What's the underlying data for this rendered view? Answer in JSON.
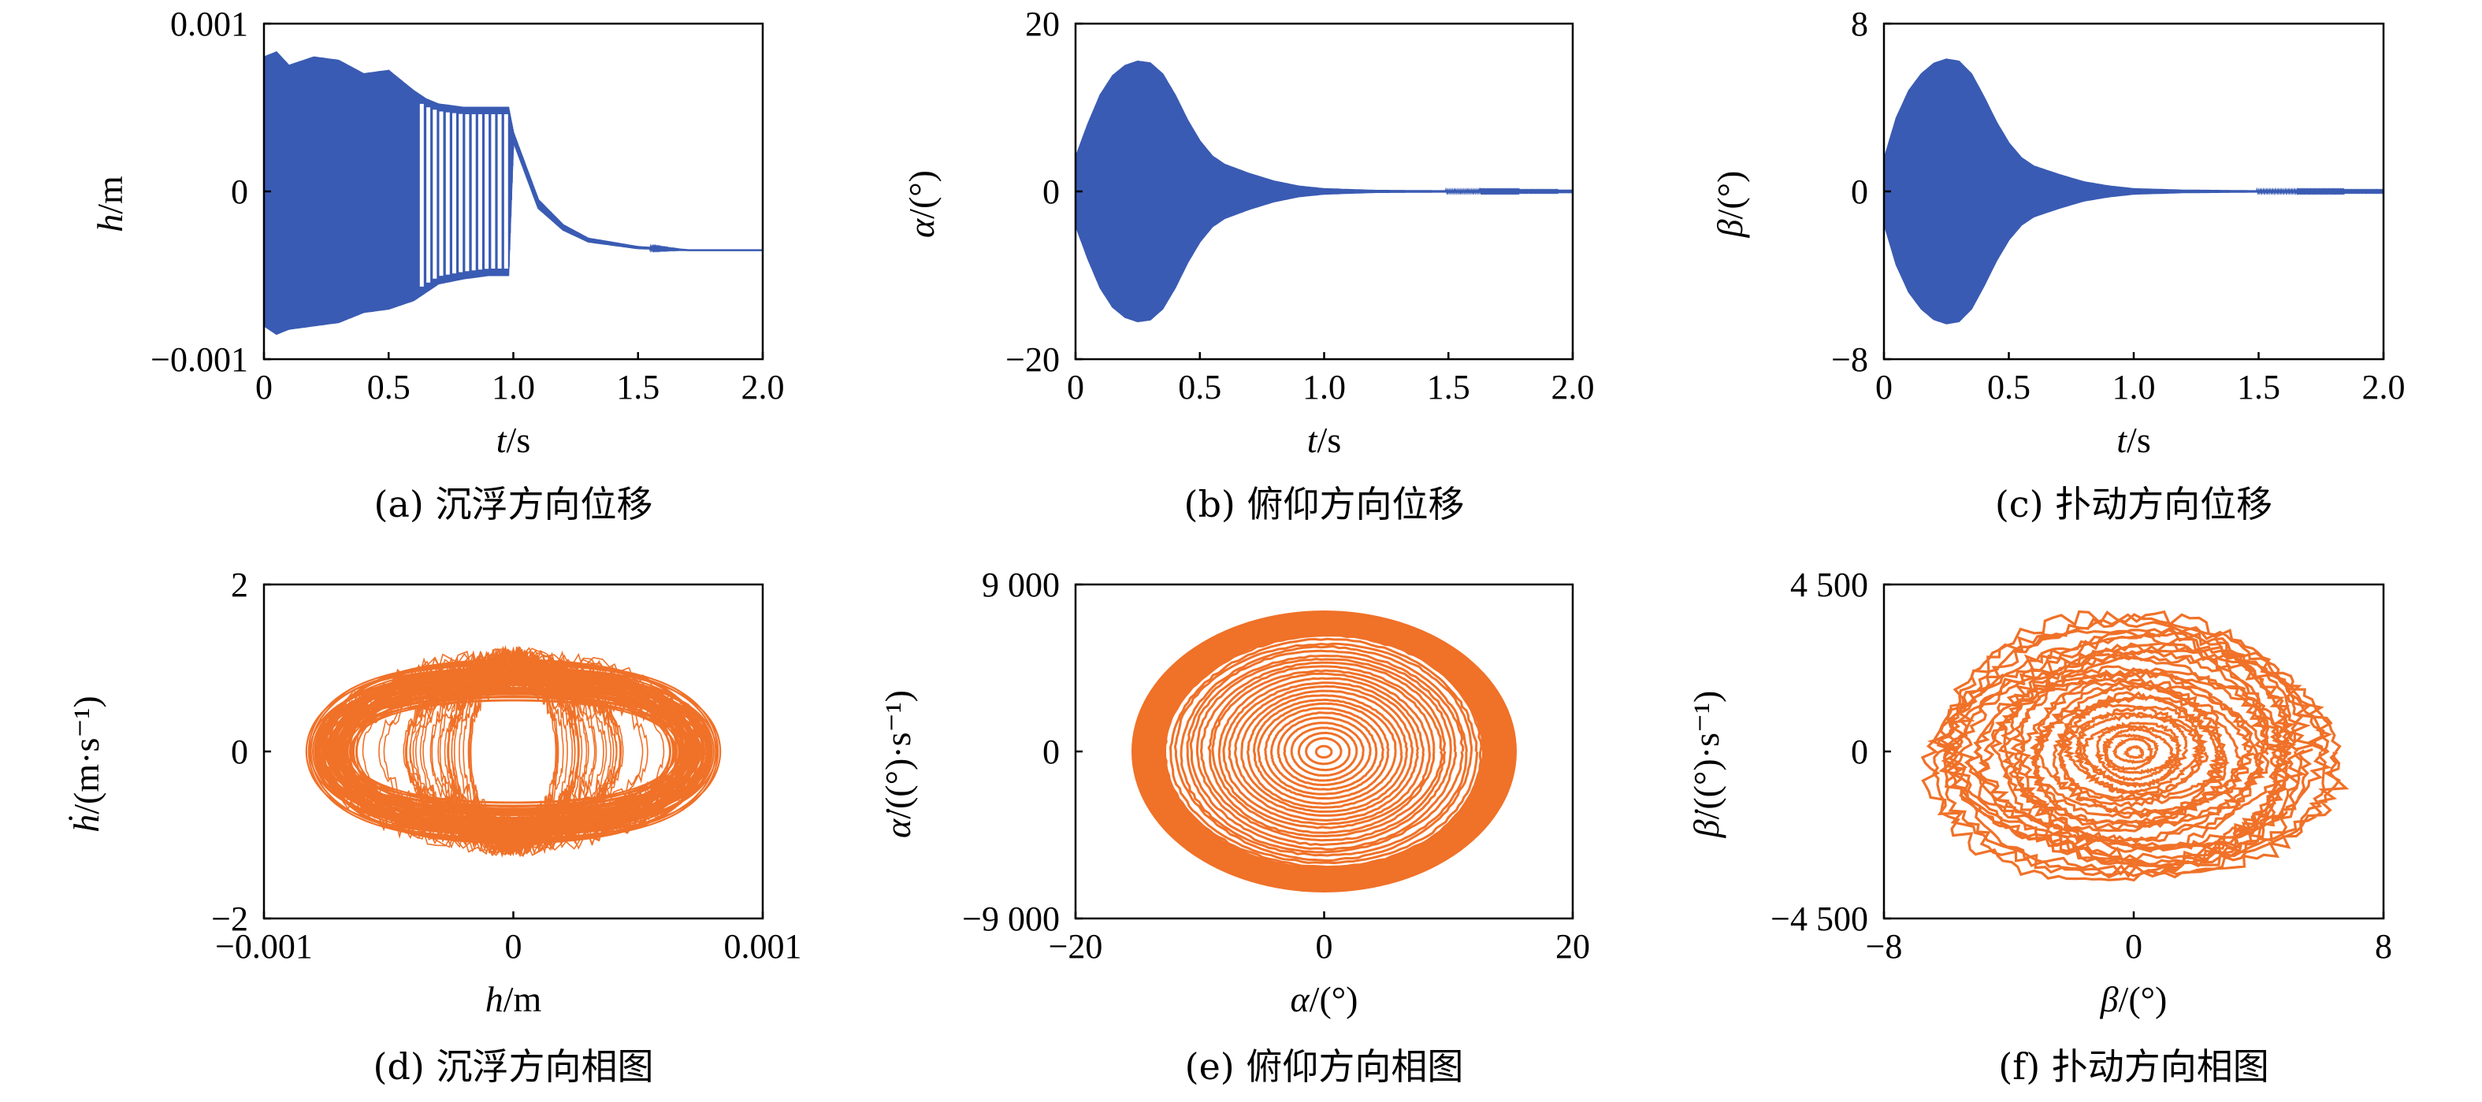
{
  "figure": {
    "series_colors": {
      "time_history": "#3a5bb3",
      "phase": "#f07128"
    }
  },
  "chart_data": [
    {
      "id": "a",
      "type": "line",
      "caption": "(a) 沉浮方向位移",
      "xlabel": "t/s",
      "ylabel": "h/m",
      "xlim": [
        0,
        2.0
      ],
      "ylim": [
        -0.001,
        0.001
      ],
      "xticks": [
        "0",
        "0.5",
        "1.0",
        "1.5",
        "2.0"
      ],
      "xtick_values": [
        0,
        0.5,
        1.0,
        1.5,
        2.0
      ],
      "yticks": [
        "−0.001",
        "0",
        "0.001"
      ],
      "ytick_values": [
        -0.001,
        0,
        0.001
      ],
      "grid": false,
      "series": [
        {
          "kind": "time_history",
          "color": "#3a5bb3",
          "envelope": {
            "t": [
              0.0,
              0.05,
              0.1,
              0.2,
              0.3,
              0.4,
              0.5,
              0.6,
              0.65,
              0.7,
              0.8,
              0.9,
              0.95,
              0.98,
              1.0,
              1.05,
              1.1,
              1.2,
              1.3,
              1.5,
              1.7,
              2.0
            ],
            "upper": [
              0.0008,
              0.00083,
              0.00075,
              0.0008,
              0.00078,
              0.0007,
              0.00072,
              0.0006,
              0.00055,
              0.00052,
              0.0005,
              0.0005,
              0.0005,
              0.0005,
              0.00035,
              0.00015,
              -5e-05,
              -0.0002,
              -0.00028,
              -0.00033,
              -0.00035,
              -0.00035
            ],
            "lower": [
              -0.0008,
              -0.00085,
              -0.00082,
              -0.0008,
              -0.00078,
              -0.00072,
              -0.0007,
              -0.00065,
              -0.0006,
              -0.00055,
              -0.00052,
              -0.0005,
              -0.0005,
              -0.0005,
              0.0003,
              0.0001,
              -0.0001,
              -0.00023,
              -0.0003,
              -0.00034,
              -0.00035,
              -0.00035
            ]
          },
          "final_value": -0.00035
        }
      ]
    },
    {
      "id": "b",
      "type": "line",
      "caption": "(b) 俯仰方向位移",
      "xlabel": "t/s",
      "ylabel": "α/(°)",
      "xlim": [
        0,
        2.0
      ],
      "ylim": [
        -20,
        20
      ],
      "xticks": [
        "0",
        "0.5",
        "1.0",
        "1.5",
        "2.0"
      ],
      "xtick_values": [
        0,
        0.5,
        1.0,
        1.5,
        2.0
      ],
      "yticks": [
        "−20",
        "0",
        "20"
      ],
      "ytick_values": [
        -20,
        0,
        20
      ],
      "grid": false,
      "series": [
        {
          "kind": "time_history",
          "color": "#3a5bb3",
          "envelope": {
            "t": [
              0.0,
              0.05,
              0.1,
              0.15,
              0.2,
              0.25,
              0.3,
              0.35,
              0.4,
              0.45,
              0.5,
              0.55,
              0.6,
              0.7,
              0.8,
              0.9,
              1.0,
              1.2,
              1.5,
              2.0
            ],
            "upper": [
              4,
              8,
              11.5,
              13.8,
              15,
              15.5,
              15.3,
              14,
              11.5,
              8.5,
              6,
              4.2,
              3.2,
              2.1,
              1.2,
              0.6,
              0.3,
              0.1,
              0.05,
              0.02
            ],
            "lower": [
              -4,
              -8,
              -11.5,
              -13.8,
              -15,
              -15.5,
              -15.3,
              -14,
              -11.5,
              -8.5,
              -6,
              -4.2,
              -3.2,
              -2.1,
              -1.2,
              -0.6,
              -0.3,
              -0.1,
              -0.05,
              -0.02
            ]
          },
          "final_value": 0
        }
      ]
    },
    {
      "id": "c",
      "type": "line",
      "caption": "(c) 扑动方向位移",
      "xlabel": "t/s",
      "ylabel": "β/(°)",
      "xlim": [
        0,
        2.0
      ],
      "ylim": [
        -8,
        8
      ],
      "xticks": [
        "0",
        "0.5",
        "1.0",
        "1.5",
        "2.0"
      ],
      "xtick_values": [
        0,
        0.5,
        1.0,
        1.5,
        2.0
      ],
      "yticks": [
        "−8",
        "0",
        "8"
      ],
      "ytick_values": [
        -8,
        0,
        8
      ],
      "grid": false,
      "series": [
        {
          "kind": "time_history",
          "color": "#3a5bb3",
          "envelope": {
            "t": [
              0.0,
              0.05,
              0.1,
              0.15,
              0.2,
              0.25,
              0.3,
              0.35,
              0.4,
              0.45,
              0.5,
              0.55,
              0.6,
              0.7,
              0.8,
              0.9,
              1.0,
              1.2,
              1.5,
              2.0
            ],
            "upper": [
              1.5,
              3.5,
              4.8,
              5.6,
              6.1,
              6.3,
              6.2,
              5.6,
              4.5,
              3.3,
              2.3,
              1.6,
              1.2,
              0.8,
              0.45,
              0.25,
              0.12,
              0.05,
              0.02,
              0.01
            ],
            "lower": [
              -1.5,
              -3.5,
              -4.8,
              -5.6,
              -6.1,
              -6.3,
              -6.2,
              -5.6,
              -4.5,
              -3.3,
              -2.3,
              -1.6,
              -1.2,
              -0.8,
              -0.45,
              -0.25,
              -0.12,
              -0.05,
              -0.02,
              -0.01
            ]
          },
          "final_value": 0
        }
      ]
    },
    {
      "id": "d",
      "type": "line",
      "caption": "(d) 沉浮方向相图",
      "xlabel": "h/m",
      "ylabel": "ḣ/(m·s⁻¹)",
      "xlim": [
        -0.001,
        0.001
      ],
      "ylim": [
        -2,
        2
      ],
      "xticks": [
        "−0.001",
        "0",
        "0.001"
      ],
      "xtick_values": [
        -0.001,
        0,
        0.001
      ],
      "yticks": [
        "−2",
        "0",
        "2"
      ],
      "ytick_values": [
        -2,
        0,
        2
      ],
      "grid": false,
      "series": [
        {
          "kind": "phase_portrait",
          "color": "#f07128",
          "shape": "bowtie",
          "x_amplitude": 0.00085,
          "y_amplitude": 1.4,
          "waist_y": 1.1
        }
      ]
    },
    {
      "id": "e",
      "type": "line",
      "caption": "(e) 俯仰方向相图",
      "xlabel": "α/(°)",
      "ylabel": "α̇/((°)·s⁻¹)",
      "xlim": [
        -20,
        20
      ],
      "ylim": [
        -9000,
        9000
      ],
      "xticks": [
        "−20",
        "0",
        "20"
      ],
      "xtick_values": [
        -20,
        0,
        20
      ],
      "yticks": [
        "−9 000",
        "0",
        "9 000"
      ],
      "ytick_values": [
        -9000,
        0,
        9000
      ],
      "grid": false,
      "series": [
        {
          "kind": "phase_portrait",
          "color": "#f07128",
          "shape": "spiral",
          "x_amplitude": 15.5,
          "y_amplitude": 7600,
          "solid_fraction": 0.82
        }
      ]
    },
    {
      "id": "f",
      "type": "line",
      "caption": "(f) 扑动方向相图",
      "xlabel": "β/(°)",
      "ylabel": "β̇/((°)·s⁻¹)",
      "xlim": [
        -8,
        8
      ],
      "ylim": [
        -4500,
        4500
      ],
      "xticks": [
        "−8",
        "0",
        "8"
      ],
      "xtick_values": [
        -8,
        0,
        8
      ],
      "yticks": [
        "−4 500",
        "0",
        "4 500"
      ],
      "ytick_values": [
        -4500,
        0,
        4500
      ],
      "grid": false,
      "series": [
        {
          "kind": "phase_portrait",
          "color": "#f07128",
          "shape": "irregular_spiral",
          "x_amplitude": 6.4,
          "y_amplitude": 3500,
          "solid_fraction": 0
        }
      ]
    }
  ]
}
